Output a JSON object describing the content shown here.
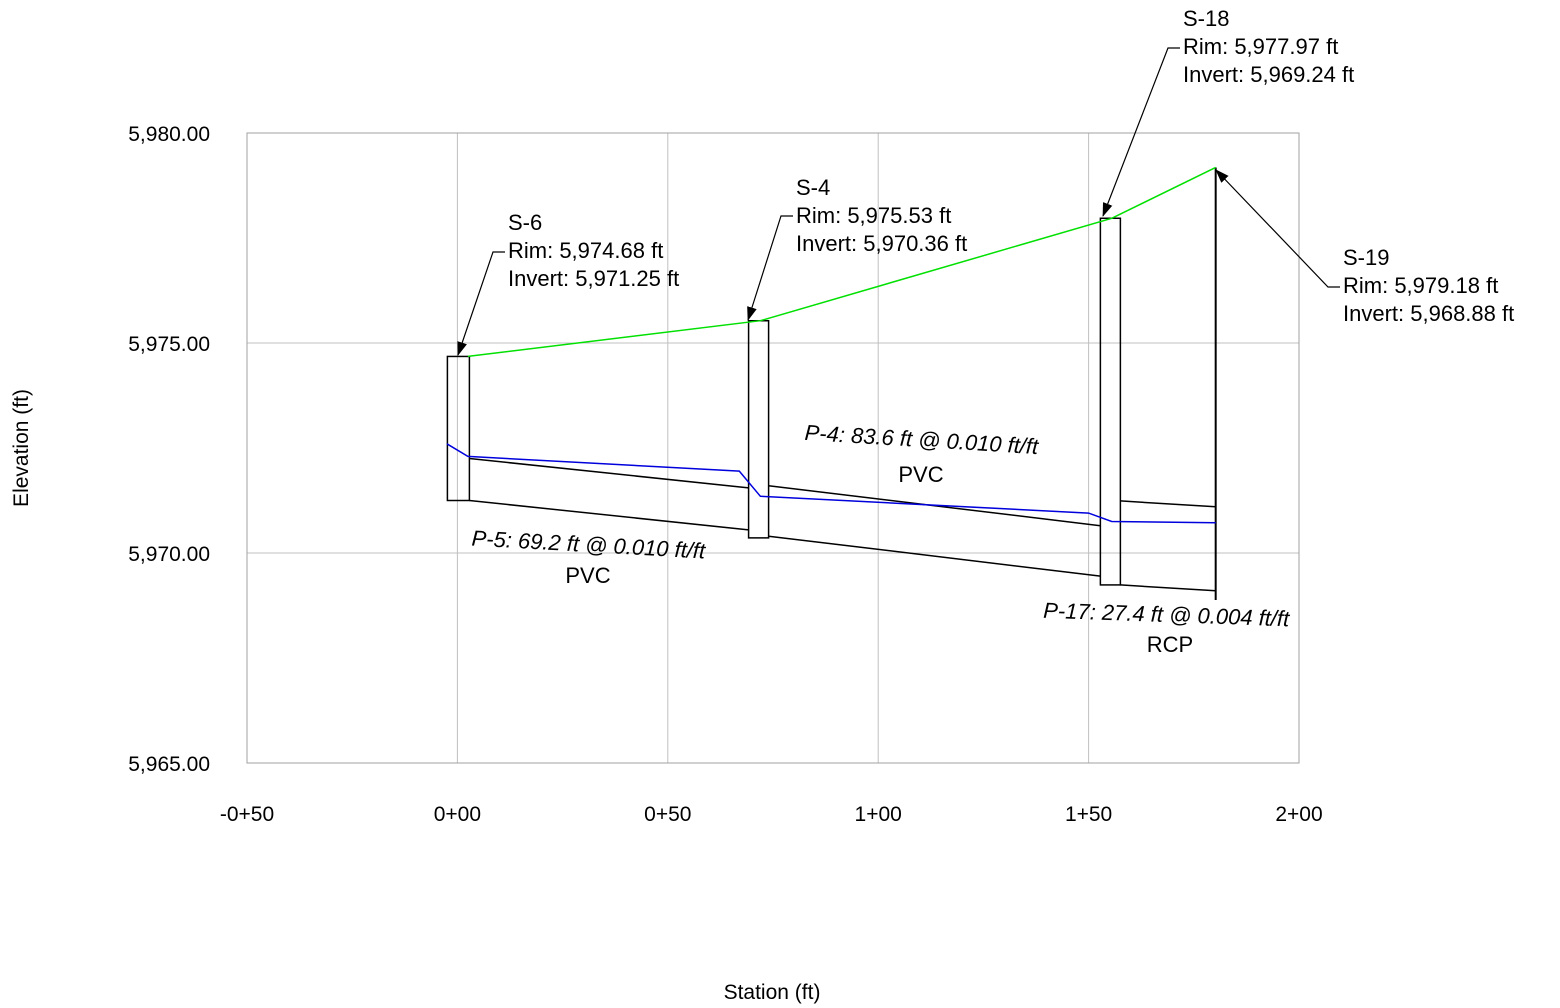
{
  "chart_data": {
    "type": "line",
    "xlabel": "Station (ft)",
    "ylabel": "Elevation (ft)",
    "xlim": [
      -50,
      200
    ],
    "ylim": [
      5965,
      5980
    ],
    "x_ticks": [
      {
        "value": -50,
        "label": "-0+50"
      },
      {
        "value": 0,
        "label": "0+00"
      },
      {
        "value": 50,
        "label": "0+50"
      },
      {
        "value": 100,
        "label": "1+00"
      },
      {
        "value": 150,
        "label": "1+50"
      },
      {
        "value": 200,
        "label": "2+00"
      }
    ],
    "y_ticks": [
      {
        "value": 5965,
        "label": "5,965.00"
      },
      {
        "value": 5970,
        "label": "5,970.00"
      },
      {
        "value": 5975,
        "label": "5,975.00"
      },
      {
        "value": 5980,
        "label": "5,980.00"
      }
    ],
    "grid": true,
    "colors": {
      "ground": "#00e000",
      "hgl": "#0000dd",
      "structure": "#000000",
      "grid": "#c0c0c0"
    },
    "structures": [
      {
        "name": "S-6",
        "station": 0.0,
        "rim": 5974.68,
        "invert": 5971.25,
        "rim_text": "Rim: 5,974.68 ft",
        "invert_text": "Invert: 5,971.25 ft"
      },
      {
        "name": "S-4",
        "station": 69.2,
        "rim": 5975.53,
        "invert": 5970.36,
        "rim_text": "Rim: 5,975.53 ft",
        "invert_text": "Invert: 5,970.36 ft"
      },
      {
        "name": "S-18",
        "station": 152.8,
        "rim": 5977.97,
        "invert": 5969.24,
        "rim_text": "Rim: 5,977.97 ft",
        "invert_text": "Invert: 5,969.24 ft"
      },
      {
        "name": "S-19",
        "station": 180.2,
        "rim": 5979.18,
        "invert": 5968.88,
        "rim_text": "Rim: 5,979.18 ft",
        "invert_text": "Invert: 5,968.88 ft"
      }
    ],
    "pipes": [
      {
        "id": "P-5",
        "from": 0,
        "to": 1,
        "label": "P-5: 69.2 ft @ 0.010 ft/ft",
        "material": "PVC",
        "start_invert": 5971.25,
        "end_invert": 5970.55,
        "crown_offset": 1.0
      },
      {
        "id": "P-4",
        "from": 1,
        "to": 2,
        "label": "P-4: 83.6 ft @ 0.010 ft/ft",
        "material": "PVC",
        "start_invert": 5970.4,
        "end_invert": 5969.45,
        "crown_offset": 1.2
      },
      {
        "id": "P-17",
        "from": 2,
        "to": 3,
        "label": "P-17: 27.4 ft @ 0.004 ft/ft",
        "material": "RCP",
        "start_invert": 5969.24,
        "end_invert": 5969.1,
        "crown_offset": 2.0
      }
    ],
    "ground_profile": [
      {
        "x": 2.5,
        "y": 5974.68
      },
      {
        "x": 72.0,
        "y": 5975.53
      },
      {
        "x": 155.5,
        "y": 5977.97
      },
      {
        "x": 180.2,
        "y": 5979.18
      }
    ],
    "hgl_profile": [
      {
        "x": -2.5,
        "y": 5972.6
      },
      {
        "x": 2.5,
        "y": 5972.3
      },
      {
        "x": 67.0,
        "y": 5971.95
      },
      {
        "x": 72.0,
        "y": 5971.35
      },
      {
        "x": 150.0,
        "y": 5970.95
      },
      {
        "x": 155.5,
        "y": 5970.75
      },
      {
        "x": 180.2,
        "y": 5970.72
      }
    ]
  }
}
